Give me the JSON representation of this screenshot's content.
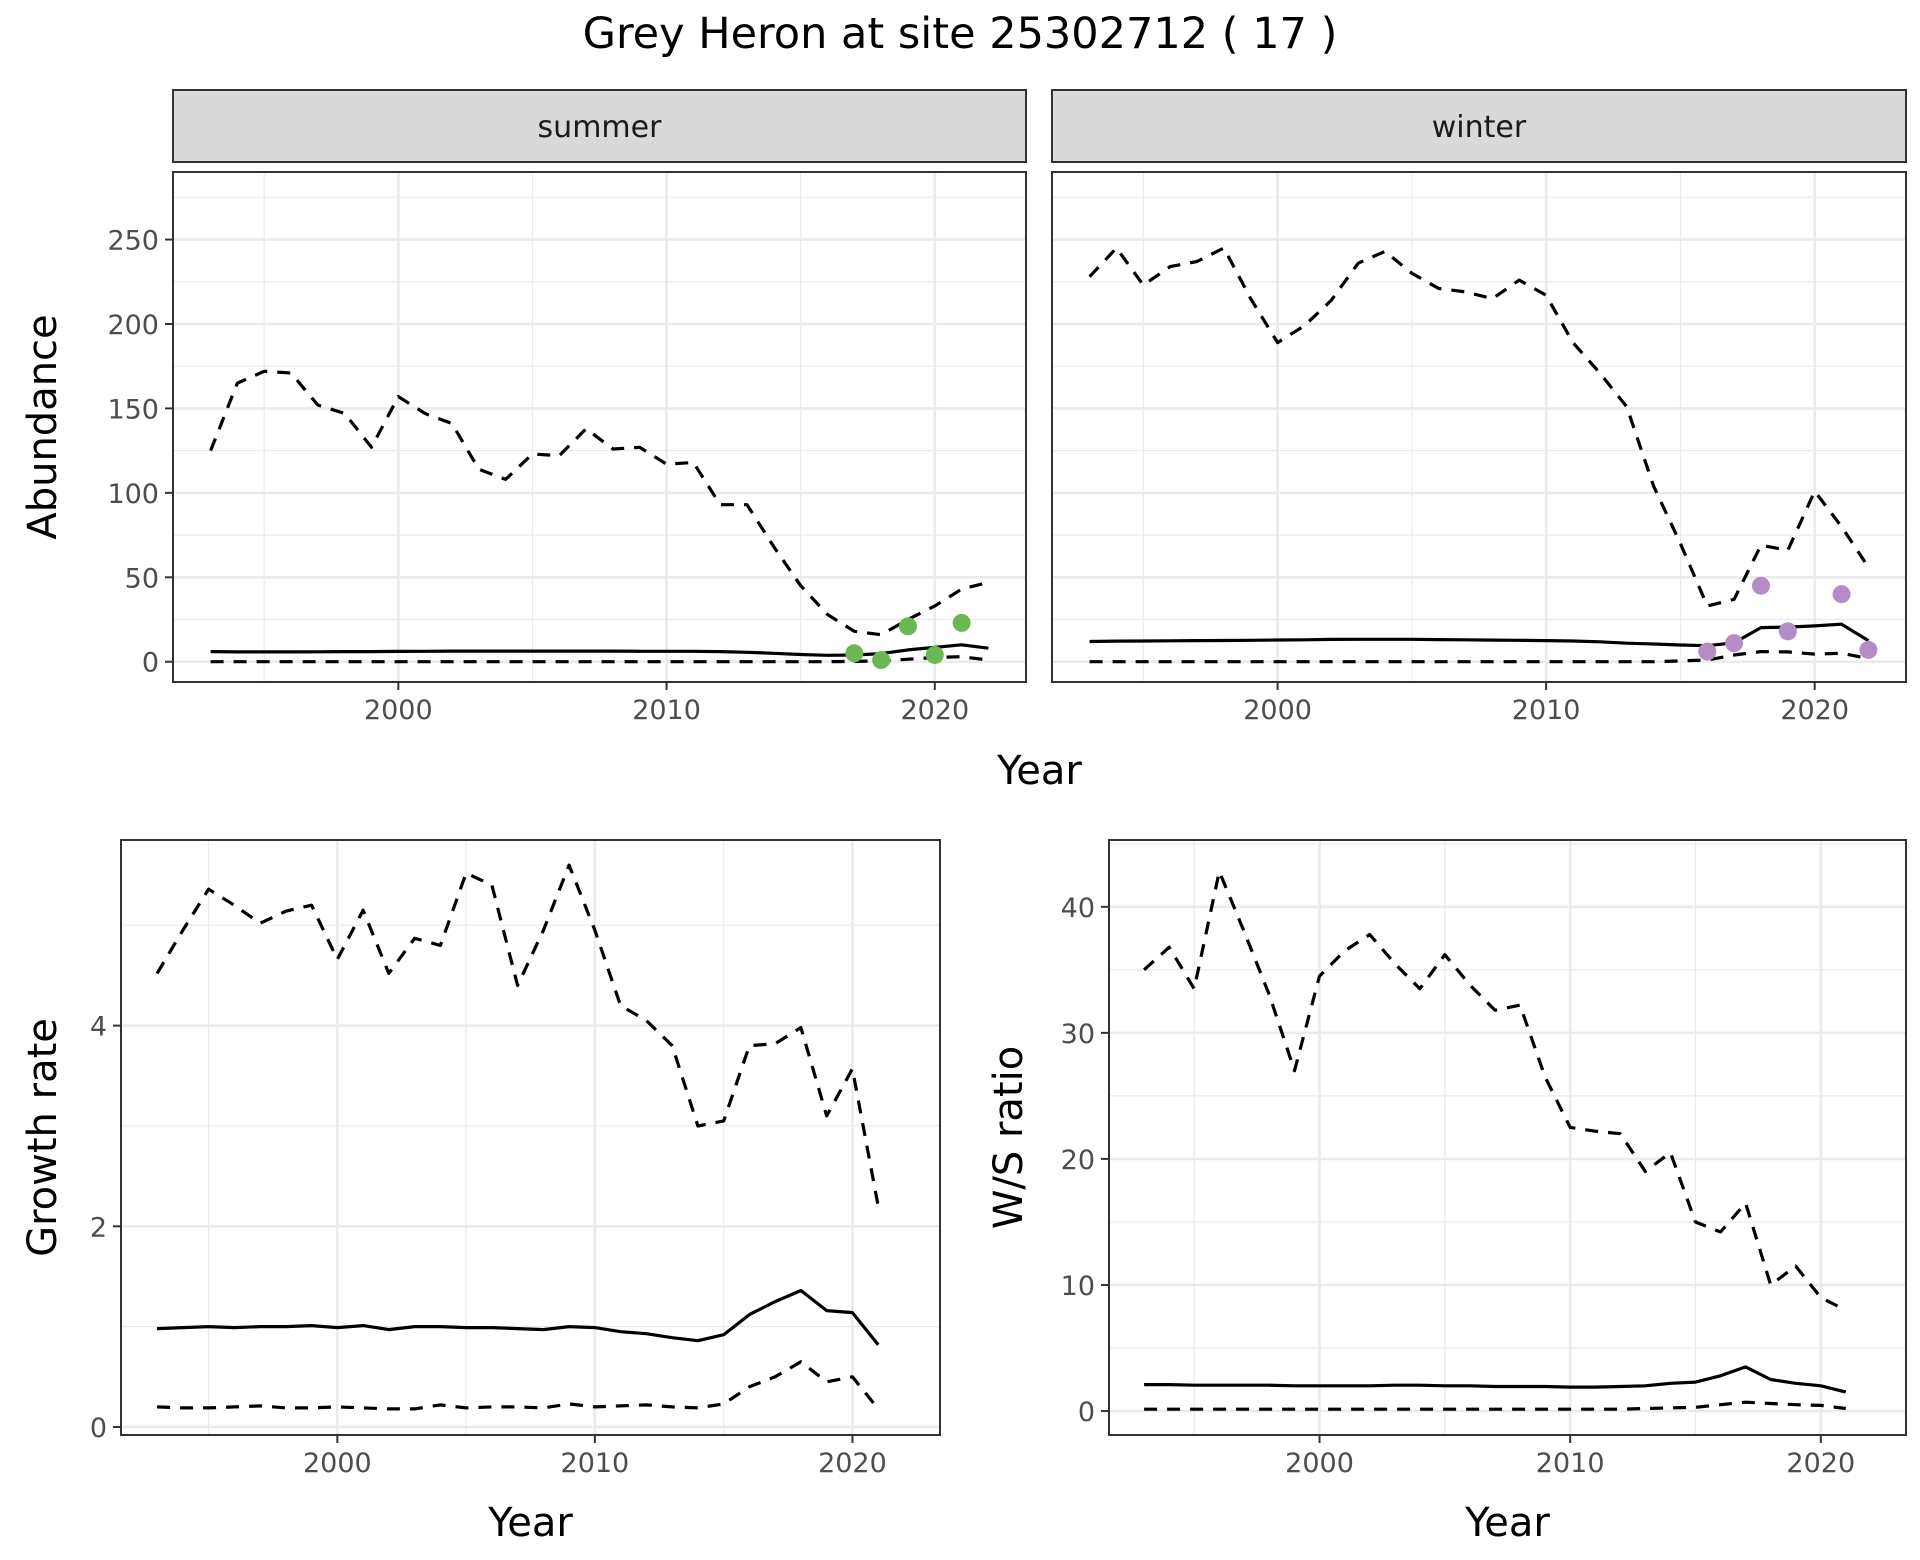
{
  "title": "Grey Heron at site 25302712 ( 17 )",
  "colors": {
    "summer_points": "#6ab851",
    "winter_points": "#b48cc8",
    "line": "#000000",
    "grid": "#ebebeb",
    "strip_fill": "#d9d9d9"
  },
  "chart_data": [
    {
      "id": "abundance",
      "type": "line",
      "facets": [
        {
          "strip": "summer",
          "x": [
            1993,
            1994,
            1995,
            1996,
            1997,
            1998,
            1999,
            2000,
            2001,
            2002,
            2003,
            2004,
            2005,
            2006,
            2007,
            2008,
            2009,
            2010,
            2011,
            2012,
            2013,
            2014,
            2015,
            2016,
            2017,
            2018,
            2019,
            2020,
            2021,
            2022
          ],
          "series": [
            {
              "style": "dashed",
              "values": [
                125,
                165,
                172,
                171,
                152,
                147,
                127,
                157,
                147,
                141,
                114,
                108,
                123,
                122,
                138,
                126,
                127,
                117,
                118,
                93,
                93,
                68,
                45,
                28,
                18,
                16,
                25,
                33,
                43,
                47
              ]
            },
            {
              "style": "solid",
              "values": [
                6,
                5.8,
                5.8,
                5.8,
                5.9,
                6,
                6,
                6.1,
                6.2,
                6.3,
                6.3,
                6.3,
                6.3,
                6.3,
                6.3,
                6.3,
                6.2,
                6.2,
                6.2,
                6,
                5.6,
                5,
                4.3,
                3.8,
                4,
                4.8,
                7,
                8.5,
                10,
                8
              ]
            },
            {
              "style": "dashed",
              "values": [
                0,
                0,
                0,
                0,
                0,
                0,
                0,
                0,
                0,
                0,
                0,
                0,
                0,
                0,
                0,
                0,
                0,
                0,
                0,
                0,
                0,
                0,
                0,
                0,
                0.2,
                0.5,
                1.5,
                2.5,
                3,
                1
              ]
            }
          ],
          "points": {
            "x": [
              2017,
              2018,
              2019,
              2020,
              2021
            ],
            "y": [
              5,
              1,
              21,
              4,
              23
            ]
          }
        },
        {
          "strip": "winter",
          "x": [
            1993,
            1994,
            1995,
            1996,
            1997,
            1998,
            1999,
            2000,
            2001,
            2002,
            2003,
            2004,
            2005,
            2006,
            2007,
            2008,
            2009,
            2010,
            2011,
            2012,
            2013,
            2014,
            2015,
            2016,
            2017,
            2018,
            2019,
            2020,
            2021,
            2022
          ],
          "series": [
            {
              "style": "dashed",
              "values": [
                228,
                245,
                223,
                234,
                237,
                245,
                215,
                189,
                199,
                214,
                236,
                243,
                230,
                221,
                219,
                215,
                226,
                217,
                189,
                171,
                151,
                104,
                70,
                33,
                37,
                69,
                66,
                101,
                80,
                56
              ]
            },
            {
              "style": "solid",
              "values": [
                12,
                12.2,
                12.3,
                12.4,
                12.5,
                12.6,
                12.7,
                12.9,
                13,
                13.2,
                13.3,
                13.3,
                13.3,
                13.1,
                13,
                12.8,
                12.7,
                12.5,
                12.3,
                11.8,
                11,
                10.5,
                9.9,
                9.5,
                11.2,
                20.2,
                20.5,
                21.2,
                22.2,
                12.5
              ]
            },
            {
              "style": "dashed",
              "values": [
                0,
                0,
                0,
                0,
                0,
                0,
                0,
                0,
                0,
                0,
                0,
                0,
                0,
                0,
                0,
                0,
                0,
                0,
                0,
                0,
                0,
                0,
                0.5,
                1,
                4,
                6,
                5.8,
                4.5,
                5,
                2
              ]
            }
          ],
          "points": {
            "x": [
              2016,
              2017,
              2018,
              2019,
              2020,
              2021,
              2022
            ],
            "y": [
              6,
              11,
              45,
              18,
              null,
              40,
              7
            ]
          }
        }
      ],
      "ylabel": "Abundance",
      "xlabel": "Year",
      "x_ticks": [
        2000,
        2010,
        2020
      ],
      "y_ticks": [
        0,
        50,
        100,
        150,
        200,
        250
      ],
      "xlim": [
        1991.6,
        2023.4
      ],
      "ylim": [
        -12,
        290
      ],
      "grid": true
    },
    {
      "id": "growth",
      "type": "line",
      "x": [
        1993,
        1994,
        1995,
        1996,
        1997,
        1998,
        1999,
        2000,
        2001,
        2002,
        2003,
        2004,
        2005,
        2006,
        2007,
        2008,
        2009,
        2010,
        2011,
        2012,
        2013,
        2014,
        2015,
        2016,
        2017,
        2018,
        2019,
        2020,
        2021
      ],
      "series": [
        {
          "style": "dashed",
          "values": [
            4.52,
            4.95,
            5.36,
            5.2,
            5.02,
            5.14,
            5.2,
            4.66,
            5.15,
            4.52,
            4.87,
            4.8,
            5.52,
            5.4,
            4.4,
            4.95,
            5.6,
            4.95,
            4.2,
            4.05,
            3.8,
            3.0,
            3.05,
            3.8,
            3.82,
            3.98,
            3.1,
            3.57,
            2.2
          ]
        },
        {
          "style": "solid",
          "values": [
            0.98,
            0.99,
            1.0,
            0.99,
            1.0,
            1.0,
            1.01,
            0.99,
            1.01,
            0.97,
            1.0,
            1.0,
            0.99,
            0.99,
            0.98,
            0.97,
            1.0,
            0.99,
            0.95,
            0.93,
            0.89,
            0.86,
            0.92,
            1.12,
            1.25,
            1.36,
            1.16,
            1.14,
            0.82
          ]
        },
        {
          "style": "dashed",
          "values": [
            0.2,
            0.19,
            0.19,
            0.2,
            0.21,
            0.19,
            0.19,
            0.2,
            0.19,
            0.18,
            0.18,
            0.22,
            0.19,
            0.2,
            0.2,
            0.19,
            0.23,
            0.2,
            0.21,
            0.22,
            0.2,
            0.19,
            0.23,
            0.4,
            0.5,
            0.65,
            0.45,
            0.5,
            0.18
          ]
        }
      ],
      "ylabel": "Growth rate",
      "xlabel": "Year",
      "x_ticks": [
        2000,
        2010,
        2020
      ],
      "y_ticks": [
        0,
        2,
        4
      ],
      "xlim": [
        1991.6,
        2023.4
      ],
      "ylim": [
        -0.08,
        5.85
      ],
      "grid": true
    },
    {
      "id": "ws-ratio",
      "type": "line",
      "x": [
        1993,
        1994,
        1995,
        1996,
        1997,
        1998,
        1999,
        2000,
        2001,
        2002,
        2003,
        2004,
        2005,
        2006,
        2007,
        2008,
        2009,
        2010,
        2011,
        2012,
        2013,
        2014,
        2015,
        2016,
        2017,
        2018,
        2019,
        2020,
        2021
      ],
      "series": [
        {
          "style": "dashed",
          "values": [
            35,
            36.8,
            33.5,
            42.8,
            38,
            33,
            27,
            34.5,
            36.5,
            37.8,
            35.5,
            33.5,
            36.2,
            33.8,
            31.8,
            32.2,
            26.5,
            22.5,
            22.2,
            22,
            19,
            20.5,
            15,
            14.2,
            16.5,
            10,
            11.5,
            9,
            8
          ]
        },
        {
          "style": "solid",
          "values": [
            2.1,
            2.1,
            2.05,
            2.05,
            2.05,
            2.05,
            2,
            2,
            2,
            2,
            2.05,
            2.05,
            2,
            2,
            1.95,
            1.95,
            1.95,
            1.9,
            1.9,
            1.95,
            2,
            2.2,
            2.3,
            2.8,
            3.5,
            2.5,
            2.2,
            2.0,
            1.5
          ]
        },
        {
          "style": "dashed",
          "values": [
            0.15,
            0.15,
            0.15,
            0.15,
            0.15,
            0.15,
            0.15,
            0.15,
            0.15,
            0.15,
            0.15,
            0.15,
            0.15,
            0.15,
            0.15,
            0.15,
            0.15,
            0.15,
            0.15,
            0.15,
            0.2,
            0.25,
            0.3,
            0.5,
            0.7,
            0.6,
            0.5,
            0.45,
            0.2
          ]
        }
      ],
      "ylabel": "W/S ratio",
      "xlabel": "Year",
      "x_ticks": [
        2000,
        2010,
        2020
      ],
      "y_ticks": [
        0,
        10,
        20,
        30,
        40
      ],
      "xlim": [
        1991.6,
        2023.4
      ],
      "ylim": [
        -1.9,
        45.3
      ],
      "grid": true
    }
  ]
}
